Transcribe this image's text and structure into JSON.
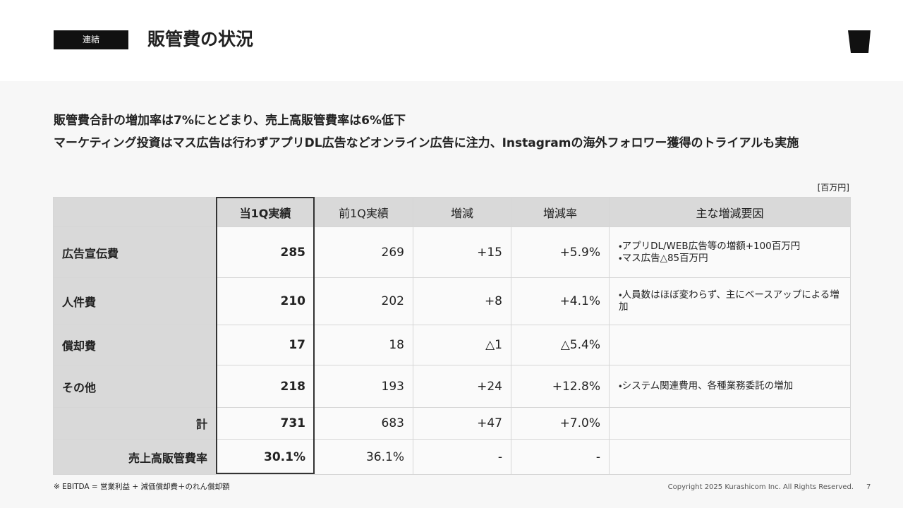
{
  "header": {
    "badge": "連結",
    "title": "販管費の状況"
  },
  "summary": [
    "販管費合計の増加率は7%にとどまり、売上高販管費率は6%低下",
    "マーケティング投資はマス広告は行わずアプリDL広告などオンライン広告に注力、Instagramの海外フォロワー獲得のトライアルも実施"
  ],
  "unit": "[百万円]",
  "table": {
    "columns": [
      "当1Q実績",
      "前1Q実績",
      "増減",
      "増減率",
      "主な増減要因"
    ],
    "rows": [
      {
        "label": "広告宣伝費",
        "values": [
          "285",
          "269",
          "+15",
          "+5.9%"
        ],
        "notes": [
          "・アプリDL/WEB広告等の増額+100百万円",
          "・マス広告△85百万円"
        ]
      },
      {
        "label": "人件費",
        "values": [
          "210",
          "202",
          "+8",
          "+4.1%"
        ],
        "notes": [
          "・人員数はほぼ変わらず、主にベースアップによる増加"
        ]
      },
      {
        "label": "償却費",
        "values": [
          "17",
          "18",
          "△1",
          "△5.4%"
        ]
      },
      {
        "label": "その他",
        "values": [
          "218",
          "193",
          "+24",
          "+12.8%"
        ],
        "notes": [
          "・システム関連費用、各種業務委託の増加"
        ]
      },
      {
        "label": "計",
        "values": [
          "731",
          "683",
          "+47",
          "+7.0%"
        ]
      },
      {
        "label": "売上高販管費率",
        "values": [
          "30.1%",
          "36.1%",
          "-",
          "-"
        ]
      }
    ]
  },
  "footer": {
    "note": "※ EBITDA = 営業利益 + 減価償却費＋のれん償却額",
    "copyright": "Copyright 2025 Kurashicom Inc. All Rights Reserved.",
    "page": "7"
  }
}
